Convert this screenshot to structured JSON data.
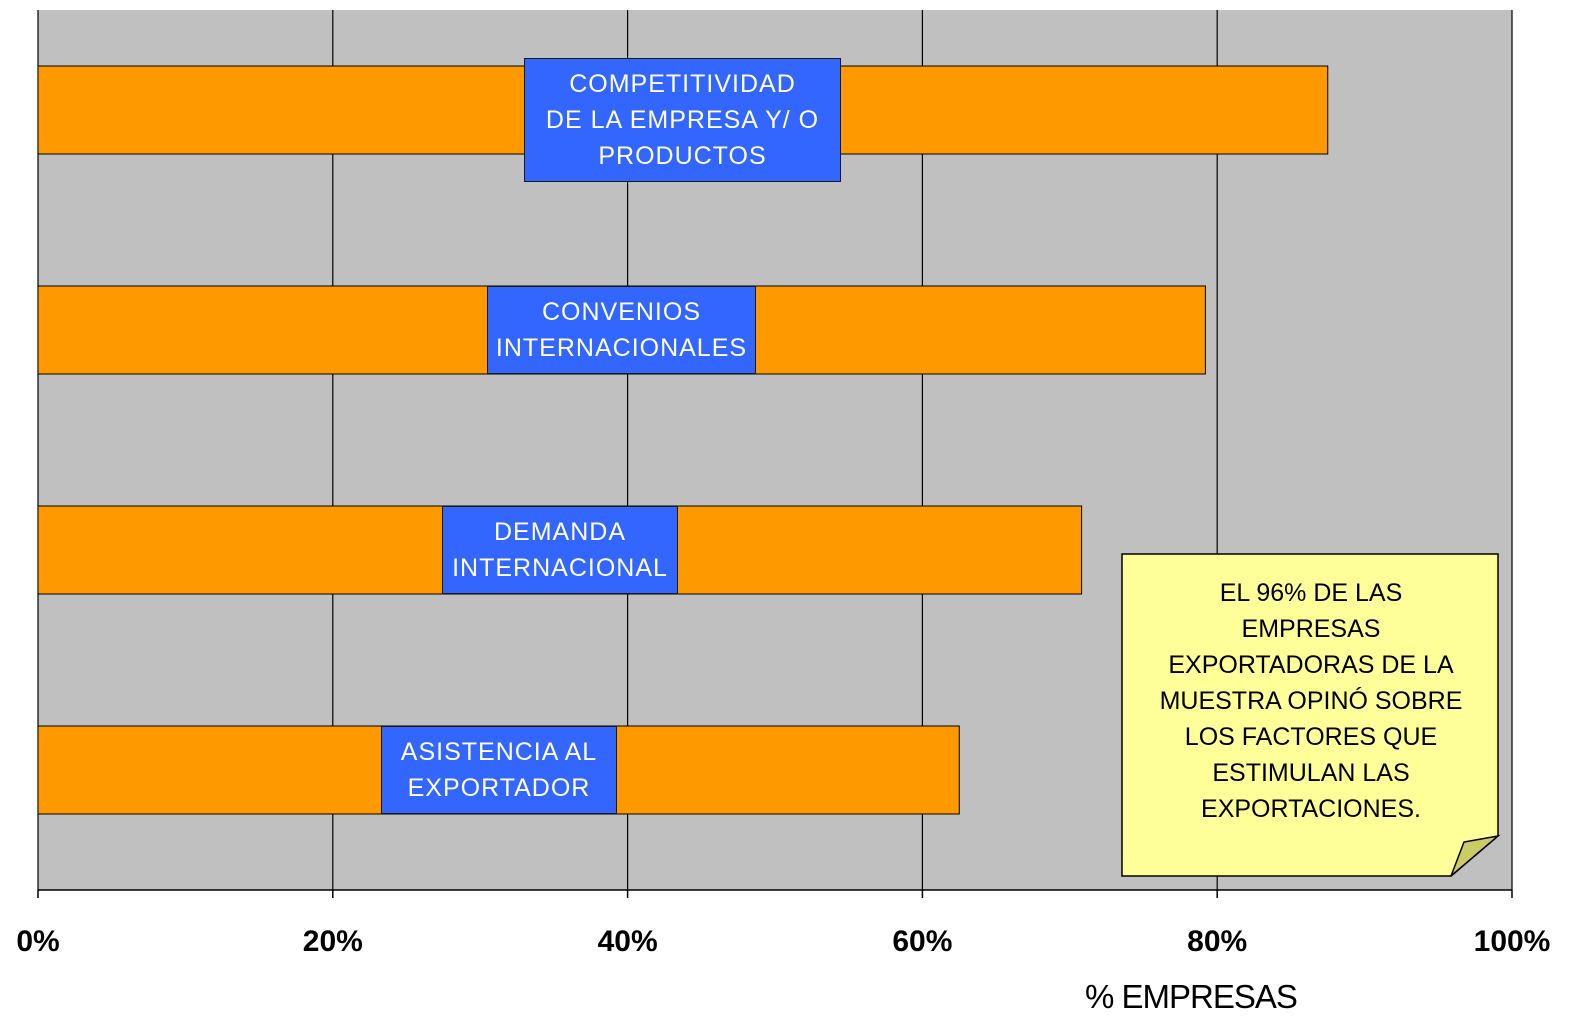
{
  "chart_data": {
    "type": "bar",
    "orientation": "horizontal",
    "categories": [
      "COMPETITIVIDAD\nDE LA EMPRESA Y/ O\nPRODUCTOS",
      "CONVENIOS\nINTERNACIONALES",
      "DEMANDA\nINTERNACIONAL",
      "ASISTENCIA AL\nEXPORTADOR"
    ],
    "values": [
      87.5,
      79.2,
      70.8,
      62.5
    ],
    "xlabel": "% EMPRESAS",
    "xlim": [
      0,
      100
    ],
    "xticks": [
      "0%",
      "20%",
      "40%",
      "60%",
      "80%",
      "100%"
    ],
    "grid": true,
    "annotation": "EL 96% DE LAS\nEMPRESAS\nEXPORTADORAS DE LA\nMUESTRA OPINÓ SOBRE\nLOS FACTORES QUE\nESTIMULAN LAS\nEXPORTACIONES.",
    "colors": {
      "bar": "#ff9900",
      "label_box": "#3366ff",
      "plot_background": "#c0c0c0",
      "note": "#ffff99"
    }
  }
}
